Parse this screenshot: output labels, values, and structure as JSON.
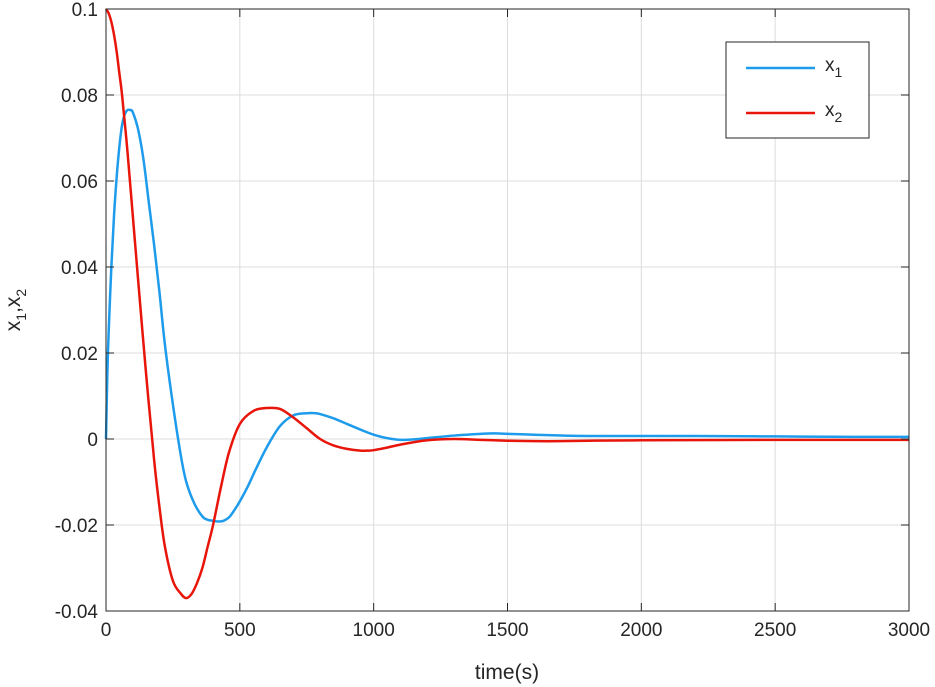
{
  "chart_data": {
    "type": "line",
    "xlabel": "time(s)",
    "ylabel": "x",
    "ylabel_sub1": "1",
    "ylabel_sep": ",x",
    "ylabel_sub2": "2",
    "xlim": [
      0,
      3000
    ],
    "ylim": [
      -0.04,
      0.1
    ],
    "xticks": [
      0,
      500,
      1000,
      1500,
      2000,
      2500,
      3000
    ],
    "xtick_labels": [
      "0",
      "500",
      "1000",
      "1500",
      "2000",
      "2500",
      "3000"
    ],
    "yticks": [
      -0.04,
      -0.02,
      0,
      0.02,
      0.04,
      0.06,
      0.08,
      0.1
    ],
    "ytick_labels": [
      "-0.04",
      "-0.02",
      "0",
      "0.02",
      "0.04",
      "0.06",
      "0.08",
      "0.1"
    ],
    "grid": true,
    "legend_position": "top-right",
    "series": [
      {
        "name_base": "x",
        "name_sub": "1",
        "color": "#1e9ceb",
        "x": [
          0,
          5,
          10,
          20,
          30,
          40,
          50,
          60,
          70,
          80,
          90,
          100,
          120,
          140,
          160,
          180,
          200,
          220,
          250,
          280,
          300,
          330,
          360,
          380,
          400,
          420,
          440,
          460,
          480,
          500,
          530,
          560,
          600,
          650,
          700,
          750,
          780,
          800,
          850,
          900,
          950,
          1000,
          1050,
          1100,
          1150,
          1200,
          1300,
          1400,
          1450,
          1500,
          1600,
          1700,
          1800,
          2000,
          2200,
          2500,
          2800,
          3000
        ],
        "y": [
          0,
          0.015,
          0.025,
          0.04,
          0.052,
          0.061,
          0.068,
          0.073,
          0.0755,
          0.0765,
          0.0765,
          0.076,
          0.072,
          0.065,
          0.055,
          0.045,
          0.034,
          0.022,
          0.008,
          -0.004,
          -0.01,
          -0.015,
          -0.018,
          -0.0188,
          -0.019,
          -0.0192,
          -0.019,
          -0.0182,
          -0.0165,
          -0.0145,
          -0.011,
          -0.007,
          -0.002,
          0.003,
          0.0055,
          0.006,
          0.006,
          0.0058,
          0.0048,
          0.0035,
          0.0022,
          0.001,
          0.0002,
          -0.0002,
          -0.0001,
          0.0002,
          0.0008,
          0.0012,
          0.0013,
          0.0012,
          0.001,
          0.0008,
          0.0007,
          0.0007,
          0.0007,
          0.0006,
          0.0005,
          0.0005
        ]
      },
      {
        "name_base": "x",
        "name_sub": "2",
        "color": "#e8150b",
        "x": [
          0,
          10,
          20,
          30,
          40,
          50,
          60,
          80,
          100,
          120,
          150,
          180,
          200,
          220,
          250,
          280,
          300,
          320,
          340,
          360,
          380,
          400,
          430,
          460,
          500,
          550,
          600,
          650,
          700,
          750,
          800,
          850,
          900,
          950,
          980,
          1000,
          1050,
          1100,
          1200,
          1300,
          1400,
          1500,
          1600,
          1700,
          1800,
          2000,
          2500,
          3000
        ],
        "y": [
          0.1,
          0.099,
          0.097,
          0.094,
          0.09,
          0.085,
          0.08,
          0.067,
          0.052,
          0.037,
          0.015,
          -0.005,
          -0.016,
          -0.025,
          -0.033,
          -0.036,
          -0.037,
          -0.036,
          -0.0335,
          -0.03,
          -0.025,
          -0.02,
          -0.011,
          -0.003,
          0.0035,
          0.0065,
          0.0072,
          0.007,
          0.005,
          0.0025,
          0,
          -0.0015,
          -0.0023,
          -0.0027,
          -0.0027,
          -0.0026,
          -0.002,
          -0.0013,
          -0.0003,
          0.0,
          -0.0002,
          -0.0004,
          -0.0005,
          -0.0005,
          -0.0004,
          -0.0003,
          -0.0002,
          -0.0002
        ]
      }
    ]
  }
}
